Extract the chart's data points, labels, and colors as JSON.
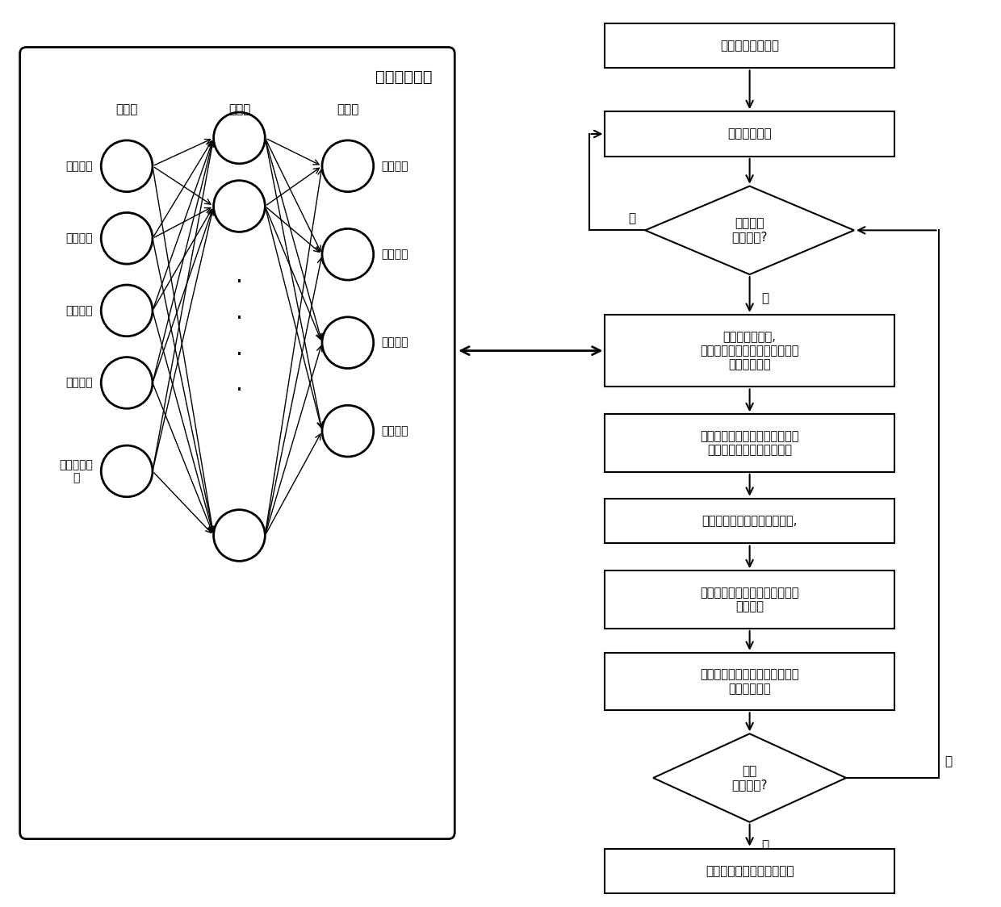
{
  "nn_box_label": "神经网络模型",
  "input_layer_label": "输入层",
  "hidden_layer_label": "隐藏层",
  "output_layer_label": "输出层",
  "input_nodes": [
    "焊接速度",
    "接头厚度",
    "焊接电流",
    "焊接电压",
    "保护气体流\n量"
  ],
  "output_nodes": [
    "焊缝宽度",
    "焊缝熔深",
    "焊缝高度",
    "热影响区"
  ],
  "bg_color": "#ffffff"
}
